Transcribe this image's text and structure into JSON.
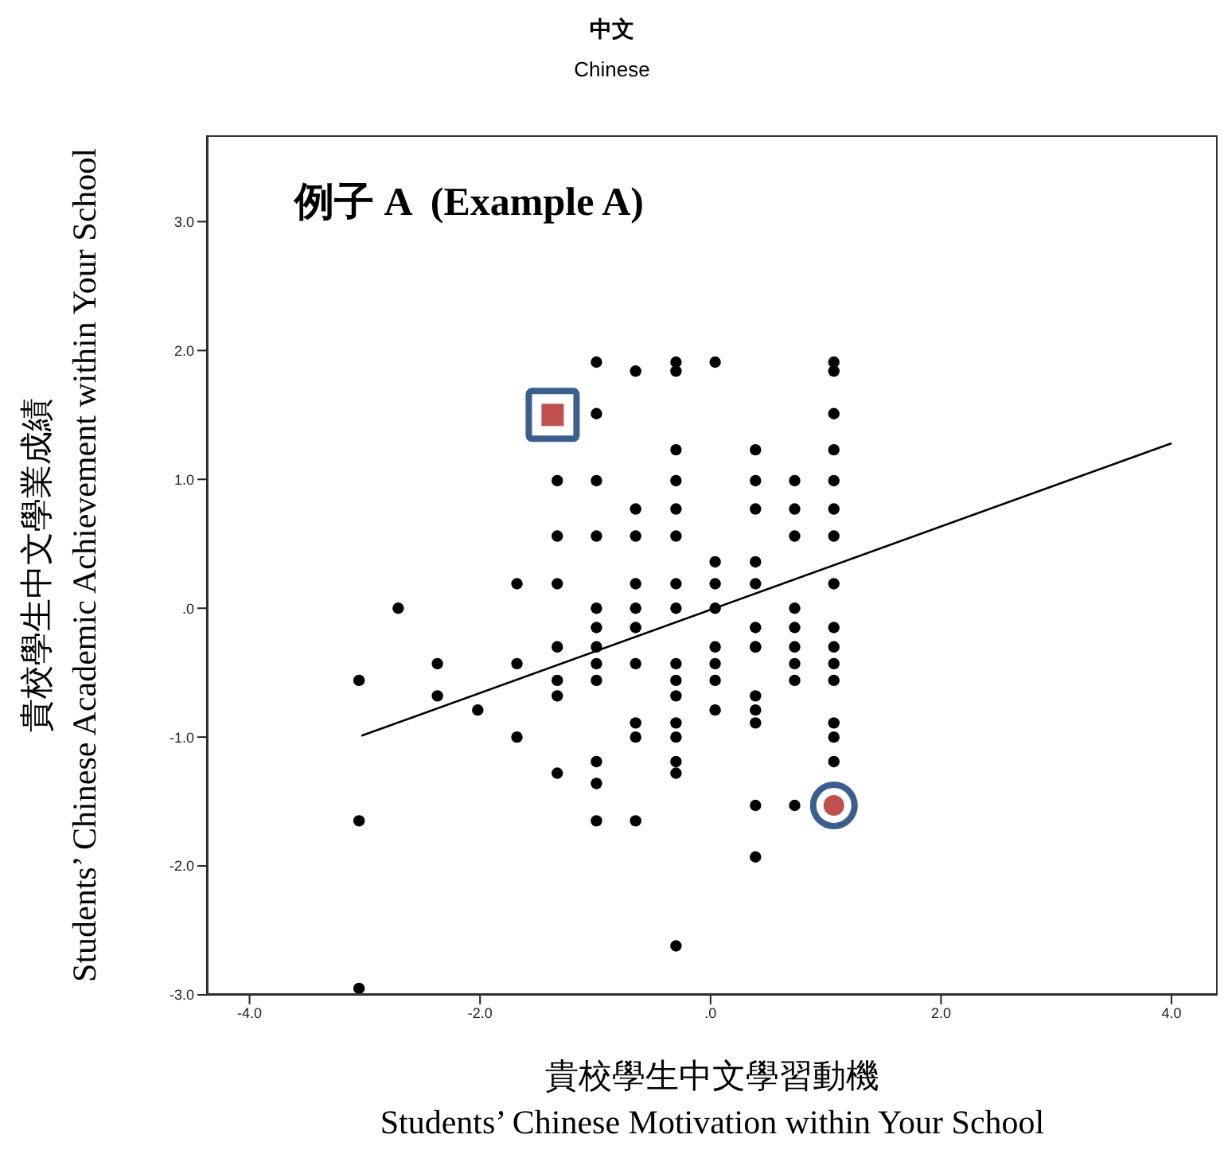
{
  "chart_data": {
    "type": "scatter",
    "title": "中文",
    "subtitle": "Chinese",
    "annotations": [
      "例子 A  (Example A)"
    ],
    "xlabel": "貴校學生中文學習動機\nStudents’ Chinese Motivation within Your School",
    "ylabel": "貴校學生中文學業成績\nStudents’ Chinese Academic Achievement within Your School",
    "xlim": [
      -4.37,
      4.4
    ],
    "ylim": [
      -3,
      3.67
    ],
    "xticks": [
      {
        "value": -4,
        "label": "-4.0"
      },
      {
        "value": -2,
        "label": "-2.0"
      },
      {
        "value": 0,
        "label": ".0"
      },
      {
        "value": 2,
        "label": "2.0"
      },
      {
        "value": 4,
        "label": "4.0"
      }
    ],
    "yticks": [
      {
        "value": -3,
        "label": "-3.0"
      },
      {
        "value": -2,
        "label": "-2.0"
      },
      {
        "value": -1,
        "label": "-1.0"
      },
      {
        "value": 0,
        "label": ".0"
      },
      {
        "value": 1,
        "label": "1.0"
      },
      {
        "value": 2,
        "label": "2.0"
      },
      {
        "value": 3,
        "label": "3.0"
      }
    ],
    "grid": false,
    "legend": false,
    "series": [
      {
        "type": "scatter",
        "color": "#000000",
        "marker": "circle",
        "x": [
          -3.05,
          -3.05,
          -3.05,
          -2.71,
          -2.37,
          -2.37,
          -2.02,
          -1.68,
          -1.68,
          -1.68,
          -1.33,
          -1.33,
          -1.33,
          -1.33,
          -1.33,
          -1.33,
          -1.33,
          -0.99,
          -0.99,
          -0.99,
          -0.99,
          -0.99,
          -0.99,
          -0.99,
          -0.99,
          -0.99,
          -0.99,
          -0.99,
          -0.99,
          -0.65,
          -0.65,
          -0.65,
          -0.65,
          -0.65,
          -0.65,
          -0.65,
          -0.65,
          -0.65,
          -0.65,
          -0.3,
          -0.3,
          -0.3,
          -0.3,
          -0.3,
          -0.3,
          -0.3,
          -0.3,
          -0.3,
          -0.3,
          -0.3,
          -0.3,
          -0.3,
          -0.3,
          -0.3,
          -0.3,
          0.04,
          0.04,
          0.04,
          0.04,
          0.04,
          0.04,
          0.04,
          0.04,
          0.39,
          0.39,
          0.39,
          0.39,
          0.39,
          0.39,
          0.39,
          0.39,
          0.39,
          0.39,
          0.39,
          0.39,
          0.39,
          0.73,
          0.73,
          0.73,
          0.73,
          0.73,
          0.73,
          0.73,
          0.73,
          0.73,
          1.07,
          1.07,
          1.07,
          1.07,
          1.07,
          1.07,
          1.07,
          1.07,
          1.07,
          1.07,
          1.07,
          1.07,
          1.07,
          1.07,
          1.07
        ],
        "values": [
          -0.56,
          -1.65,
          -2.95,
          0,
          -0.43,
          -0.68,
          -0.79,
          0.19,
          -0.43,
          -1,
          0.99,
          0.56,
          0.19,
          -0.3,
          -0.56,
          -0.68,
          -1.28,
          1.91,
          1.51,
          0.99,
          0.56,
          0,
          -0.15,
          -0.3,
          -0.43,
          -0.56,
          -1.19,
          -1.36,
          -1.65,
          1.84,
          0.77,
          0.56,
          0.19,
          0,
          -0.15,
          -0.43,
          -0.89,
          -1,
          -1.65,
          1.91,
          1.84,
          1.23,
          0.99,
          0.77,
          0.56,
          0.19,
          0,
          -0.43,
          -0.56,
          -0.68,
          -0.89,
          -1,
          -1.19,
          -1.28,
          -2.62,
          1.91,
          0.36,
          0.19,
          0,
          -0.3,
          -0.43,
          -0.56,
          -0.79,
          1.23,
          0.99,
          0.77,
          0.36,
          0.19,
          -0.15,
          -0.3,
          -0.68,
          -0.79,
          -0.89,
          -1.53,
          -1.93,
          -0.3,
          0.99,
          0.77,
          0.56,
          0,
          -0.15,
          -0.3,
          -0.43,
          -0.56,
          -1.53,
          1.91,
          1.84,
          1.51,
          1.23,
          0.99,
          0.77,
          0.56,
          0.19,
          -0.15,
          -0.3,
          -0.43,
          -0.56,
          -0.89,
          -1,
          -1.19
        ]
      },
      {
        "type": "line",
        "color": "#000000",
        "marker": "none",
        "line_style": "solid",
        "x": [
          -3.03,
          4
        ],
        "values": [
          -0.99,
          1.28
        ]
      },
      {
        "type": "scatter",
        "color": "#c0504d",
        "marker": "square",
        "x": [
          -1.37
        ],
        "values": [
          1.5
        ]
      },
      {
        "type": "scatter",
        "color": "#c0504d",
        "marker": "circle",
        "x": [
          1.07
        ],
        "values": [
          -1.53
        ]
      }
    ]
  }
}
